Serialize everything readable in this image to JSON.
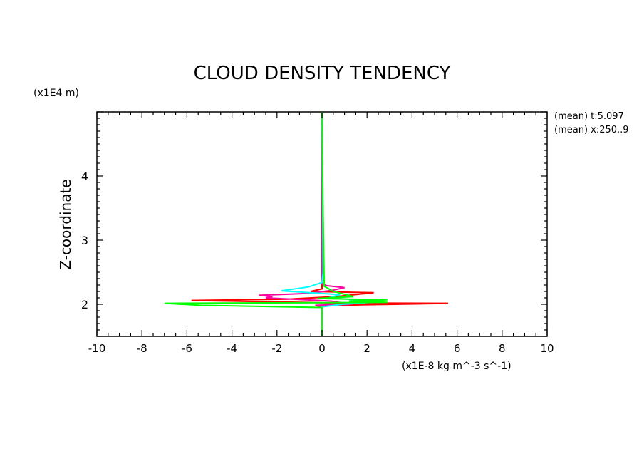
{
  "chart_data": {
    "type": "line",
    "title": "CLOUD DENSITY TENDENCY",
    "y_unit": "(x1E4 m)",
    "x_unit": "(x1E-8 kg m^-3 s^-1)",
    "ylabel": "Z-coordinate",
    "xlabel": "",
    "xlim": [
      -10,
      10
    ],
    "ylim": [
      1.5,
      5.0
    ],
    "x_ticks": [
      -10,
      -8,
      -6,
      -4,
      -2,
      0,
      2,
      4,
      6,
      8,
      10
    ],
    "x_tick_labels": [
      "-10",
      "-8",
      "-6",
      "-4",
      "-2",
      "0",
      "2",
      "4",
      "6",
      "8",
      "10"
    ],
    "y_ticks": [
      2,
      3,
      4
    ],
    "y_tick_labels": [
      "2",
      "3",
      "4"
    ],
    "annotations": [
      "(mean) t:5.097",
      "(mean) x:250..9"
    ],
    "grid": false,
    "series": [
      {
        "color": "#ff0000",
        "points": [
          [
            0,
            1.5
          ],
          [
            0,
            1.96
          ],
          [
            -0.2,
            1.975
          ],
          [
            1.6,
            1.99
          ],
          [
            4.2,
            2.005
          ],
          [
            5.6,
            2.015
          ],
          [
            0.8,
            2.02
          ],
          [
            -2.5,
            2.04
          ],
          [
            -5.8,
            2.06
          ],
          [
            -1.5,
            2.08
          ],
          [
            0.6,
            2.12
          ],
          [
            2.3,
            2.18
          ],
          [
            -0.5,
            2.2
          ],
          [
            0,
            2.24
          ],
          [
            0,
            5.0
          ]
        ]
      },
      {
        "color": "#ff00a0",
        "points": [
          [
            0,
            1.5
          ],
          [
            0,
            1.96
          ],
          [
            -0.3,
            1.985
          ],
          [
            1.3,
            2.0
          ],
          [
            0.4,
            2.05
          ],
          [
            -2.5,
            2.1
          ],
          [
            -2.2,
            2.12
          ],
          [
            -2.8,
            2.14
          ],
          [
            -0.6,
            2.17
          ],
          [
            0.5,
            2.22
          ],
          [
            1.0,
            2.26
          ],
          [
            0.2,
            2.29
          ],
          [
            0,
            2.32
          ],
          [
            0,
            5.0
          ]
        ]
      },
      {
        "color": "#00ffff",
        "points": [
          [
            0,
            1.5
          ],
          [
            0,
            1.96
          ],
          [
            0.9,
            2.0
          ],
          [
            2.6,
            2.04
          ],
          [
            0.3,
            2.1
          ],
          [
            0.8,
            2.15
          ],
          [
            -1.8,
            2.21
          ],
          [
            -0.6,
            2.27
          ],
          [
            0,
            2.34
          ],
          [
            0.05,
            2.5
          ],
          [
            0,
            5.0
          ]
        ]
      },
      {
        "color": "#00ff00",
        "points": [
          [
            0,
            1.5
          ],
          [
            0,
            1.95
          ],
          [
            -5.4,
            1.985
          ],
          [
            -7.0,
            2.015
          ],
          [
            2.9,
            2.03
          ],
          [
            1.2,
            2.05
          ],
          [
            2.9,
            2.07
          ],
          [
            -0.2,
            2.09
          ],
          [
            1.4,
            2.12
          ],
          [
            0.5,
            2.2
          ],
          [
            0.1,
            2.28
          ],
          [
            0.05,
            3.4
          ],
          [
            0,
            5.0
          ]
        ]
      }
    ]
  }
}
